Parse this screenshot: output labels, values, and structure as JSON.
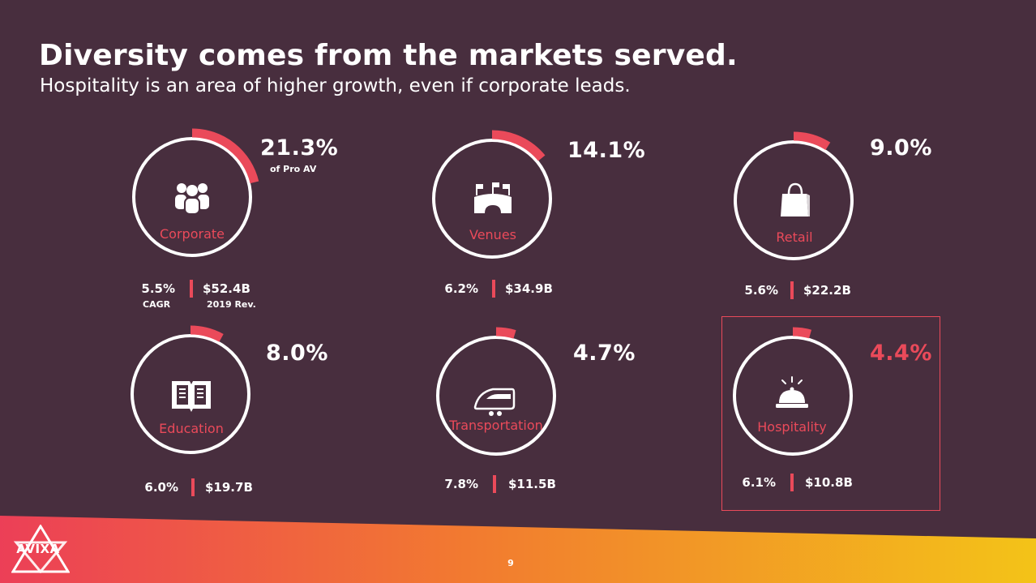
{
  "slide": {
    "title": "Diversity comes from the markets served.",
    "subtitle": "Hospitality is an area of higher growth, even if corporate leads.",
    "page_number": "9",
    "logo_text": "AVIXA"
  },
  "captions": {
    "share_note": "of Pro AV",
    "cagr": "CAGR",
    "revenue": "2019 Rev."
  },
  "colors": {
    "background": "#482e3e",
    "accent": "#ea4a5a",
    "ring": "#ffffff",
    "footer_start": "#ec3f57",
    "footer_mid": "#f27a30",
    "footer_end": "#f3c318"
  },
  "markets": [
    {
      "name": "Corporate",
      "share": "21.3%",
      "share_pct": 21.3,
      "cagr": "5.5%",
      "revenue": "$52.4B",
      "icon": "people-group-icon"
    },
    {
      "name": "Venues",
      "share": "14.1%",
      "share_pct": 14.1,
      "cagr": "6.2%",
      "revenue": "$34.9B",
      "icon": "stadium-icon"
    },
    {
      "name": "Retail",
      "share": "9.0%",
      "share_pct": 9.0,
      "cagr": "5.6%",
      "revenue": "$22.2B",
      "icon": "shopping-bag-icon"
    },
    {
      "name": "Education",
      "share": "8.0%",
      "share_pct": 8.0,
      "cagr": "6.0%",
      "revenue": "$19.7B",
      "icon": "open-book-icon"
    },
    {
      "name": "Transportation",
      "share": "4.7%",
      "share_pct": 4.7,
      "cagr": "7.8%",
      "revenue": "$11.5B",
      "icon": "train-icon"
    },
    {
      "name": "Hospitality",
      "share": "4.4%",
      "share_pct": 4.4,
      "cagr": "6.1%",
      "revenue": "$10.8B",
      "icon": "service-bell-icon",
      "highlighted": true
    }
  ]
}
